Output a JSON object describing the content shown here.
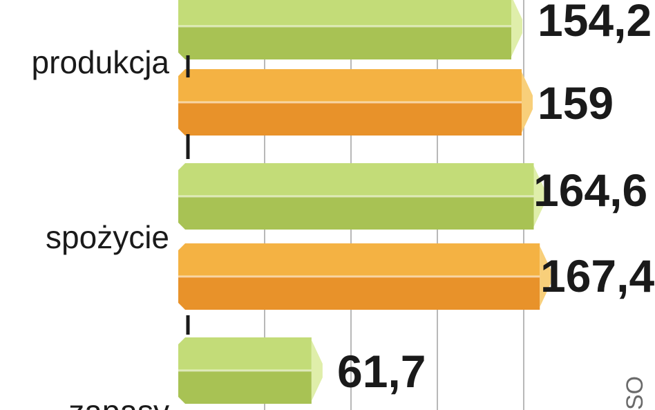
{
  "chart_data": {
    "type": "bar",
    "orientation": "horizontal",
    "categories": [
      "produkcja",
      "spożycie",
      "zapasy"
    ],
    "series": [
      {
        "values": [
          154.2,
          164.6,
          61.7
        ]
      },
      {
        "values": [
          159,
          167.4,
          null
        ]
      }
    ],
    "data_labels": [
      [
        "154,2",
        "164,6",
        "61,7"
      ],
      [
        "159",
        "167,4",
        ""
      ]
    ],
    "colors": {
      "green_light": "#c3dc78",
      "green_dark": "#a8c254",
      "green_cap": "#dfeeaa",
      "orange_light": "#f4b243",
      "orange_dark": "#e8922a",
      "orange_cap": "#f8cf7a",
      "gridline": "#b8b8b8",
      "axis": "#1a1a1a"
    },
    "xlim": [
      0,
      170
    ],
    "grid": true,
    "source_fragment": "SO"
  }
}
